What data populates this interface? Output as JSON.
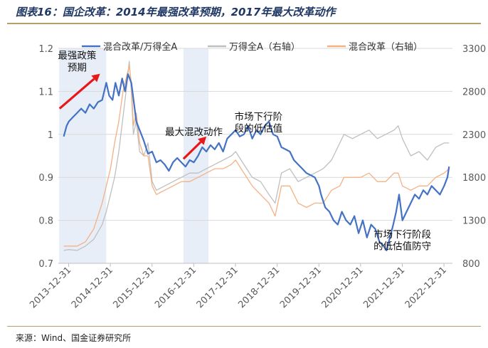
{
  "title": "图表16：国企改革：2014年最强改革预期，2017年最大改革动作",
  "source": "来源：Wind、国金证券研究所",
  "colors": {
    "ratio": "#4472c4",
    "wande": "#bfbfbf",
    "mixed": "#f4b183",
    "arrow": "#e8171a",
    "shade": "#e8eef8",
    "title": "#1f3864"
  },
  "chart_data": {
    "type": "line",
    "title": "",
    "y_left": {
      "min": 0.7,
      "max": 1.2,
      "ticks": [
        "0.7",
        "0.8",
        "0.9",
        "1",
        "1.1",
        "1.2"
      ]
    },
    "y_right": {
      "min": 800,
      "max": 3300,
      "ticks": [
        "800",
        "1300",
        "1800",
        "2300",
        "2800",
        "3300"
      ]
    },
    "x_ticks": [
      "2013-12-31",
      "2014-12-31",
      "2015-12-31",
      "2016-12-31",
      "2017-12-31",
      "2018-12-31",
      "2019-12-31",
      "2020-12-31",
      "2021-12-31",
      "2022-12-31"
    ],
    "x_range": [
      2013.75,
      2023.2
    ],
    "legend": {
      "position": "top",
      "items": [
        "混合改革/万得全A",
        "万得全A（右轴）",
        "混合改革（右轴）"
      ]
    },
    "shaded_periods": [
      [
        2013.77,
        2014.9
      ],
      [
        2016.75,
        2017.35
      ]
    ],
    "annotations": [
      {
        "text": "最强政策",
        "x": 2014.2,
        "y": 1.176
      },
      {
        "text": "预期",
        "x": 2014.2,
        "y": 1.148
      },
      {
        "text": "最大混改动作",
        "x": 2017.0,
        "y": 0.998
      },
      {
        "text": "市场下行阶",
        "x": 2018.55,
        "y": 1.034
      },
      {
        "text": "段的低估值",
        "x": 2018.55,
        "y": 1.006
      },
      {
        "text": "市场下行阶段",
        "x": 2022.0,
        "y": 0.76
      },
      {
        "text": "的低估值防守",
        "x": 2022.0,
        "y": 0.732
      }
    ],
    "arrows": [
      {
        "from": [
          2013.78,
          1.06
        ],
        "to": [
          2014.75,
          1.141
        ]
      },
      {
        "from": [
          2016.75,
          0.943
        ],
        "to": [
          2017.3,
          0.995
        ]
      }
    ],
    "series": [
      {
        "name": "混合改革/万得全A",
        "axis": "left",
        "x": [
          2013.88,
          2013.95,
          2014.0,
          2014.1,
          2014.2,
          2014.3,
          2014.4,
          2014.5,
          2014.6,
          2014.7,
          2014.8,
          2014.85,
          2014.9,
          2014.97,
          2015.05,
          2015.12,
          2015.2,
          2015.28,
          2015.35,
          2015.42,
          2015.5,
          2015.58,
          2015.62,
          2015.7,
          2015.8,
          2015.9,
          2016.0,
          2016.1,
          2016.2,
          2016.3,
          2016.4,
          2016.5,
          2016.6,
          2016.7,
          2016.8,
          2016.9,
          2017.0,
          2017.1,
          2017.2,
          2017.3,
          2017.4,
          2017.5,
          2017.6,
          2017.7,
          2017.8,
          2017.9,
          2018.0,
          2018.1,
          2018.2,
          2018.3,
          2018.4,
          2018.5,
          2018.6,
          2018.7,
          2018.8,
          2018.9,
          2019.0,
          2019.1,
          2019.2,
          2019.3,
          2019.4,
          2019.5,
          2019.6,
          2019.7,
          2019.8,
          2019.9,
          2020.0,
          2020.05,
          2020.15,
          2020.25,
          2020.35,
          2020.45,
          2020.55,
          2020.65,
          2020.75,
          2020.85,
          2020.95,
          2021.05,
          2021.15,
          2021.25,
          2021.35,
          2021.45,
          2021.55,
          2021.62,
          2021.7,
          2021.78,
          2021.85,
          2021.92,
          2022.0,
          2022.1,
          2022.2,
          2022.3,
          2022.4,
          2022.5,
          2022.6,
          2022.7,
          2022.8,
          2022.9,
          2023.0,
          2023.08,
          2023.12
        ],
        "y": [
          0.995,
          1.02,
          1.03,
          1.04,
          1.05,
          1.06,
          1.05,
          1.07,
          1.06,
          1.075,
          1.08,
          1.1,
          1.12,
          1.09,
          1.08,
          1.12,
          1.09,
          1.13,
          1.1,
          1.14,
          1.12,
          1.06,
          1.03,
          1.01,
          0.985,
          0.955,
          0.96,
          0.935,
          0.94,
          0.93,
          0.915,
          0.935,
          0.945,
          0.935,
          0.925,
          0.94,
          0.935,
          0.95,
          0.97,
          0.96,
          0.975,
          0.965,
          0.98,
          0.96,
          0.99,
          1.0,
          1.01,
          0.995,
          1.0,
          1.02,
          0.99,
          1.01,
          1.0,
          1.02,
          1.03,
          1.0,
          0.995,
          0.97,
          0.965,
          0.96,
          0.94,
          0.93,
          0.92,
          0.91,
          0.905,
          0.9,
          0.88,
          0.86,
          0.83,
          0.82,
          0.8,
          0.79,
          0.82,
          0.8,
          0.79,
          0.81,
          0.77,
          0.8,
          0.76,
          0.79,
          0.78,
          0.75,
          0.74,
          0.73,
          0.76,
          0.79,
          0.82,
          0.86,
          0.8,
          0.82,
          0.84,
          0.86,
          0.85,
          0.87,
          0.86,
          0.88,
          0.87,
          0.86,
          0.88,
          0.9,
          0.925
        ]
      },
      {
        "name": "万得全A（右轴）",
        "axis": "right",
        "x": [
          2013.88,
          2014.0,
          2014.2,
          2014.4,
          2014.6,
          2014.8,
          2014.9,
          2015.0,
          2015.1,
          2015.2,
          2015.3,
          2015.4,
          2015.45,
          2015.5,
          2015.55,
          2015.62,
          2015.7,
          2015.8,
          2015.9,
          2016.0,
          2016.1,
          2016.3,
          2016.5,
          2016.7,
          2016.9,
          2017.1,
          2017.3,
          2017.5,
          2017.7,
          2017.9,
          2018.0,
          2018.2,
          2018.4,
          2018.6,
          2018.8,
          2018.95,
          2019.1,
          2019.3,
          2019.5,
          2019.7,
          2019.9,
          2020.1,
          2020.3,
          2020.5,
          2020.6,
          2020.8,
          2021.0,
          2021.2,
          2021.4,
          2021.6,
          2021.8,
          2021.9,
          2022.0,
          2022.2,
          2022.4,
          2022.6,
          2022.8,
          2023.0,
          2023.12
        ],
        "y": [
          950,
          960,
          950,
          1000,
          1080,
          1250,
          1400,
          1600,
          1800,
          2100,
          2500,
          2900,
          3150,
          2800,
          2300,
          2450,
          2100,
          2050,
          2200,
          1750,
          1650,
          1700,
          1750,
          1800,
          1850,
          1850,
          1900,
          1950,
          2000,
          2050,
          2100,
          1950,
          1800,
          1750,
          1600,
          1500,
          1850,
          1900,
          1750,
          1800,
          1850,
          1900,
          2000,
          2200,
          2300,
          2250,
          2300,
          2350,
          2250,
          2300,
          2350,
          2400,
          2250,
          2050,
          2100,
          2000,
          2150,
          2200,
          2200
        ]
      },
      {
        "name": "混合改革（右轴）",
        "axis": "right",
        "x": [
          2013.88,
          2014.0,
          2014.2,
          2014.4,
          2014.6,
          2014.8,
          2014.9,
          2015.0,
          2015.1,
          2015.2,
          2015.3,
          2015.4,
          2015.45,
          2015.5,
          2015.55,
          2015.62,
          2015.7,
          2015.8,
          2015.9,
          2016.0,
          2016.1,
          2016.3,
          2016.5,
          2016.7,
          2016.9,
          2017.1,
          2017.3,
          2017.5,
          2017.7,
          2017.9,
          2018.0,
          2018.2,
          2018.4,
          2018.6,
          2018.8,
          2018.95,
          2019.1,
          2019.3,
          2019.5,
          2019.7,
          2019.9,
          2020.1,
          2020.3,
          2020.5,
          2020.6,
          2020.8,
          2021.0,
          2021.2,
          2021.4,
          2021.6,
          2021.8,
          2021.9,
          2022.0,
          2022.2,
          2022.4,
          2022.6,
          2022.8,
          2023.0,
          2023.12
        ],
        "y": [
          1000,
          1000,
          1000,
          1050,
          1200,
          1500,
          1700,
          1900,
          2200,
          2450,
          2800,
          3000,
          3100,
          2900,
          2400,
          2550,
          2200,
          2050,
          2050,
          1700,
          1600,
          1650,
          1700,
          1750,
          1750,
          1800,
          1850,
          1900,
          1900,
          1950,
          2000,
          1850,
          1700,
          1600,
          1500,
          1350,
          1700,
          1700,
          1500,
          1450,
          1500,
          1500,
          1650,
          1700,
          1800,
          1800,
          1800,
          1850,
          1750,
          1750,
          1850,
          1850,
          1700,
          1650,
          1700,
          1700,
          1800,
          1850,
          1900
        ]
      }
    ]
  }
}
